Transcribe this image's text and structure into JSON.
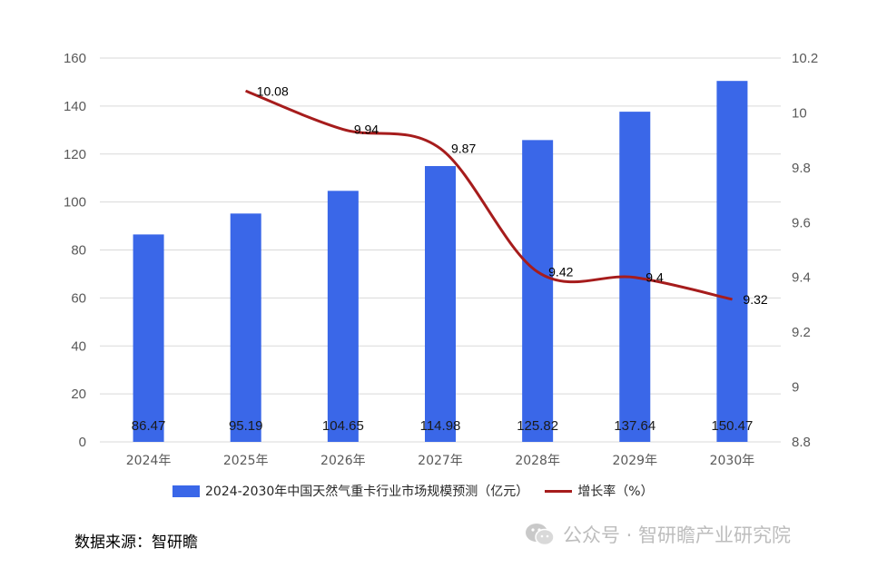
{
  "chart_data": {
    "type": "bar",
    "categories": [
      "2024年",
      "2025年",
      "2026年",
      "2027年",
      "2028年",
      "2029年",
      "2030年"
    ],
    "series": [
      {
        "name": "2024-2030年中国天然气重卡行业市场规模预测（亿元）",
        "type": "bar",
        "axis": "left",
        "color": "#3a67e8",
        "values": [
          86.47,
          95.19,
          104.65,
          114.98,
          125.82,
          137.64,
          150.47
        ],
        "labels": [
          "86.47",
          "95.19",
          "104.65",
          "114.98",
          "125.82",
          "137.64",
          "150.47"
        ]
      },
      {
        "name": "增长率（%）",
        "type": "line",
        "axis": "right",
        "color": "#a61c1c",
        "values": [
          null,
          10.08,
          9.94,
          9.87,
          9.42,
          9.4,
          9.32
        ],
        "labels": [
          "",
          "10.08",
          "9.94",
          "9.87",
          "9.42",
          "9.4",
          "9.32"
        ]
      }
    ],
    "y_left": {
      "min": 0,
      "max": 160,
      "step": 20,
      "ticks": [
        "0",
        "20",
        "40",
        "60",
        "80",
        "100",
        "120",
        "140",
        "160"
      ]
    },
    "y_right": {
      "min": 8.8,
      "max": 10.2,
      "step": 0.2,
      "ticks": [
        "8.8",
        "9",
        "9.2",
        "9.4",
        "9.6",
        "9.8",
        "10",
        "10.2"
      ]
    },
    "grid": true,
    "legend_position": "bottom",
    "source_text": "数据来源：智研瞻",
    "watermark_text": "公众号 · 智研瞻产业研究院"
  }
}
